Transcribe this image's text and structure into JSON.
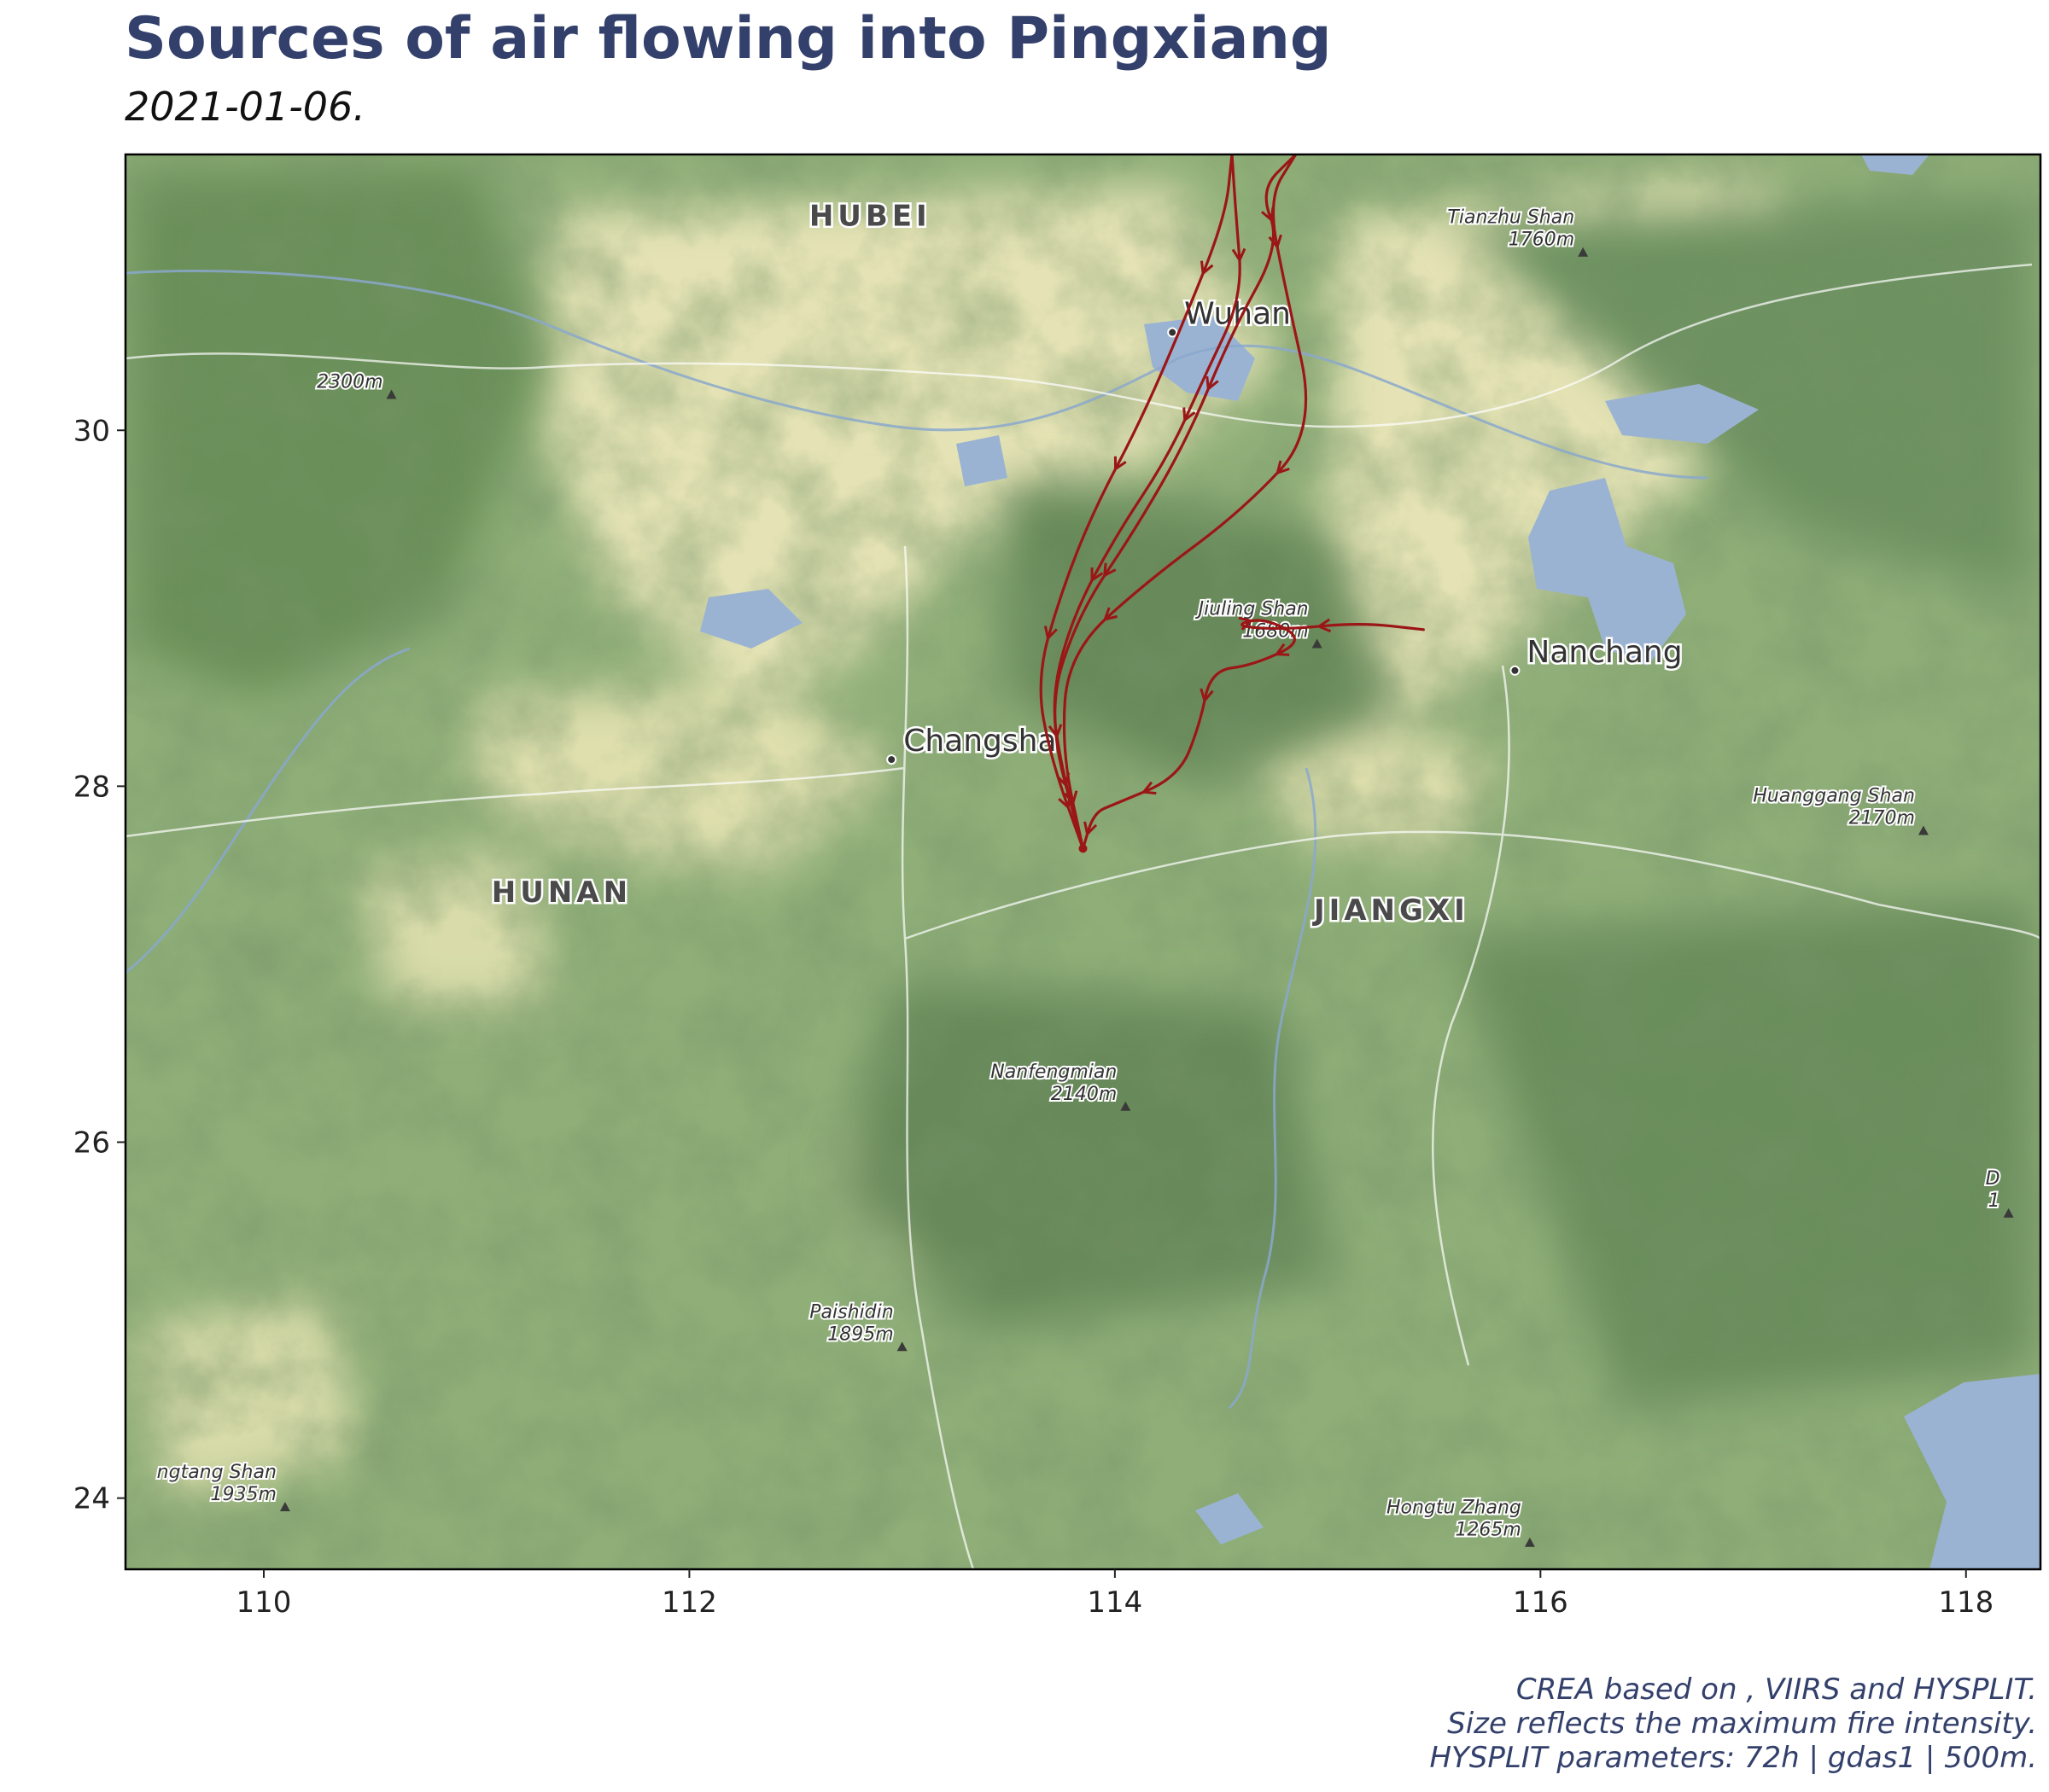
{
  "header": {
    "title": "Sources of air flowing into Pingxiang",
    "subtitle": "2021-01-06."
  },
  "map": {
    "lon_range": [
      109.35,
      118.35
    ],
    "lat_range": [
      23.6,
      31.55
    ],
    "x_ticks": [
      110,
      112,
      114,
      116,
      118
    ],
    "y_ticks": [
      24,
      26,
      28,
      30
    ],
    "basemap": "terrain",
    "colors": {
      "lowland": "#e5e3b5",
      "hills": "#8fae78",
      "mountains": "#5f844f",
      "water": "#9bb3d3",
      "trajectory": "#9b1616"
    },
    "regions": [
      {
        "label": "HUBEI",
        "lon": 112.85,
        "lat": 31.15
      },
      {
        "label": "HUNAN",
        "lon": 111.4,
        "lat": 27.35
      },
      {
        "label": "JIANGXI",
        "lon": 115.3,
        "lat": 27.25
      }
    ],
    "cities": [
      {
        "label": "Wuhan",
        "lon": 114.27,
        "lat": 30.55
      },
      {
        "label": "Changsha",
        "lon": 112.95,
        "lat": 28.15
      },
      {
        "label": "Nanchang",
        "lon": 115.88,
        "lat": 28.65
      }
    ],
    "peaks": [
      {
        "name": "Tianzhu Shan",
        "elev": "1760m",
        "lon": 116.2,
        "lat": 31.0
      },
      {
        "name": "",
        "elev": "2300m",
        "lon": 110.6,
        "lat": 30.2
      },
      {
        "name": "Jiuling Shan",
        "elev": "1680m",
        "lon": 114.95,
        "lat": 28.8
      },
      {
        "name": "Huanggang Shan",
        "elev": "2170m",
        "lon": 117.8,
        "lat": 27.75
      },
      {
        "name": "Nanfengmian",
        "elev": "2140m",
        "lon": 114.05,
        "lat": 26.2
      },
      {
        "name": "Paishidin",
        "elev": "1895m",
        "lon": 113.0,
        "lat": 24.85
      },
      {
        "name": "ngtang Shan",
        "elev": "1935m",
        "lon": 110.1,
        "lat": 23.95
      },
      {
        "name": "Hongtu Zhang",
        "elev": "1265m",
        "lon": 115.95,
        "lat": 23.75
      },
      {
        "name": "D",
        "elev": "1",
        "lon": 118.2,
        "lat": 25.6
      }
    ],
    "receptor": {
      "name": "Pingxiang",
      "lon": 113.85,
      "lat": 27.65
    },
    "trajectories": [
      [
        [
          114.55,
          31.55
        ],
        [
          114.57,
          31.2
        ],
        [
          114.6,
          30.75
        ],
        [
          114.42,
          30.3
        ],
        [
          114.25,
          29.85
        ],
        [
          114.0,
          29.4
        ],
        [
          113.8,
          28.95
        ],
        [
          113.7,
          28.5
        ],
        [
          113.75,
          28.1
        ],
        [
          113.85,
          27.65
        ]
      ],
      [
        [
          114.55,
          31.55
        ],
        [
          114.52,
          31.2
        ],
        [
          114.32,
          30.6
        ],
        [
          114.12,
          30.05
        ],
        [
          113.9,
          29.55
        ],
        [
          113.75,
          29.1
        ],
        [
          113.63,
          28.6
        ],
        [
          113.7,
          28.15
        ],
        [
          113.85,
          27.65
        ]
      ],
      [
        [
          114.85,
          31.55
        ],
        [
          114.72,
          31.3
        ],
        [
          114.8,
          30.8
        ],
        [
          114.95,
          30.0
        ],
        [
          114.6,
          29.55
        ],
        [
          114.15,
          29.15
        ],
        [
          113.78,
          28.75
        ],
        [
          113.75,
          28.2
        ],
        [
          113.85,
          27.65
        ]
      ],
      [
        [
          114.85,
          31.55
        ],
        [
          114.68,
          31.35
        ],
        [
          114.78,
          31.05
        ],
        [
          114.55,
          30.55
        ],
        [
          114.34,
          29.95
        ],
        [
          114.1,
          29.45
        ],
        [
          113.82,
          28.95
        ],
        [
          113.68,
          28.4
        ],
        [
          113.85,
          27.65
        ]
      ],
      [
        [
          115.45,
          28.88
        ],
        [
          115.15,
          28.92
        ],
        [
          114.8,
          28.88
        ],
        [
          114.55,
          28.9
        ],
        [
          114.7,
          28.95
        ],
        [
          114.9,
          28.82
        ],
        [
          114.65,
          28.68
        ],
        [
          114.45,
          28.65
        ],
        [
          114.4,
          28.35
        ],
        [
          114.3,
          28.05
        ],
        [
          114.0,
          27.9
        ],
        [
          113.9,
          27.85
        ],
        [
          113.85,
          27.65
        ]
      ]
    ]
  },
  "caption": {
    "line1": "CREA based on , VIIRS and HYSPLIT.",
    "line2": "Size reflects the maximum fire intensity.",
    "line3": "HYSPLIT parameters: 72h | gdas1 | 500m."
  }
}
